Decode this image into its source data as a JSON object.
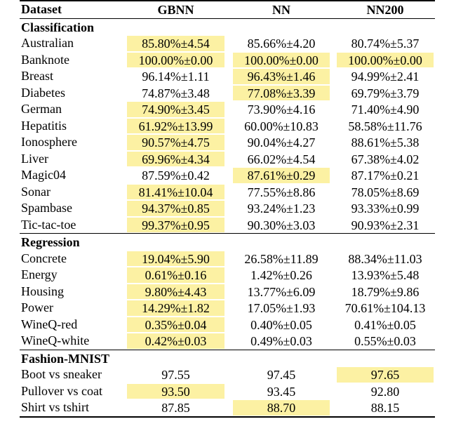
{
  "table": {
    "header": [
      "Dataset",
      "GBNN",
      "NN",
      "NN200"
    ],
    "sections": [
      {
        "title": "Classification",
        "rows": [
          [
            "Australian",
            "85.80%±4.54",
            "85.66%±4.20",
            "80.74%±5.37"
          ],
          [
            "Banknote",
            "100.00%±0.00",
            "100.00%±0.00",
            "100.00%±0.00"
          ],
          [
            "Breast",
            "96.14%±1.11",
            "96.43%±1.46",
            "94.99%±2.41"
          ],
          [
            "Diabetes",
            "74.87%±3.48",
            "77.08%±3.39",
            "69.79%±3.79"
          ],
          [
            "German",
            "74.90%±3.45",
            "73.90%±4.16",
            "71.40%±4.90"
          ],
          [
            "Hepatitis",
            "61.92%±13.99",
            "60.00%±10.83",
            "58.58%±11.76"
          ],
          [
            "Ionosphere",
            "90.57%±4.75",
            "90.04%±4.27",
            "88.61%±5.38"
          ],
          [
            "Liver",
            "69.96%±4.34",
            "66.02%±4.54",
            "67.38%±4.02"
          ],
          [
            "Magic04",
            "87.59%±0.42",
            "87.61%±0.29",
            "87.17%±0.21"
          ],
          [
            "Sonar",
            "81.41%±10.04",
            "77.55%±8.86",
            "78.05%±8.69"
          ],
          [
            "Spambase",
            "94.37%±0.85",
            "93.24%±1.23",
            "93.33%±0.99"
          ],
          [
            "Tic-tac-toe",
            "99.37%±0.95",
            "90.30%±3.03",
            "90.93%±2.31"
          ]
        ]
      },
      {
        "title": "Regression",
        "rows": [
          [
            "Concrete",
            "19.04%±5.90",
            "26.58%±11.89",
            "88.34%±11.03"
          ],
          [
            "Energy",
            "0.61%±0.16",
            "1.42%±0.26",
            "13.93%±5.48"
          ],
          [
            "Housing",
            "9.80%±4.43",
            "13.77%±6.09",
            "18.79%±9.86"
          ],
          [
            "Power",
            "14.29%±1.82",
            "17.05%±1.93",
            "70.61%±104.13"
          ],
          [
            "WineQ-red",
            "0.35%±0.04",
            "0.40%±0.05",
            "0.41%±0.05"
          ],
          [
            "WineQ-white",
            "0.42%±0.03",
            "0.49%±0.03",
            "0.55%±0.03"
          ]
        ]
      },
      {
        "title": "Fashion-MNIST",
        "rows": [
          [
            "Boot vs sneaker",
            "97.55",
            "97.45",
            "97.65"
          ],
          [
            "Pullover vs coat",
            "93.50",
            "93.45",
            "92.80"
          ],
          [
            "Shirt vs tshirt",
            "87.85",
            "88.70",
            "88.15"
          ]
        ]
      }
    ]
  }
}
